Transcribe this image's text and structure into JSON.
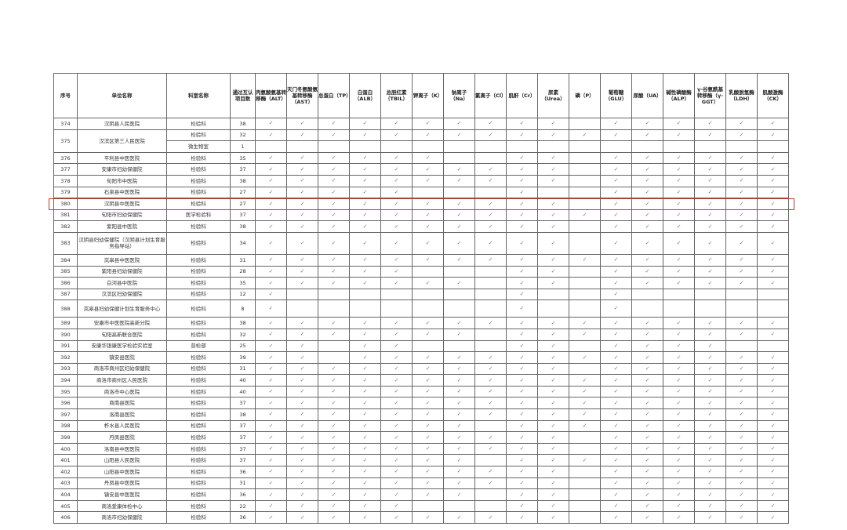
{
  "headers": [
    "序号",
    "单位名称",
    "科室名称",
    "通过互认项目数",
    "丙氨酸氨基转移酶（ALT）",
    "天门冬氨酸氨基转移酶（AST）",
    "总蛋白（TP）",
    "白蛋白（ALB）",
    "总胆红素（TBIL）",
    "钾离子（K）",
    "钠离子（Na）",
    "氯离子（Cl）",
    "肌酐（Cr）",
    "尿素（Urea）",
    "磷（P）",
    "葡萄糖（GLU）",
    "尿酸（UA）",
    "碱性磷酸酶（ALP）",
    "γ-谷氨酰基转移酶（γ-GGT）",
    "乳酸脱氢酶（LDH）",
    "肌酸激酶（CK）"
  ],
  "check_mark": "✓",
  "highlight_color": "#c0392b",
  "highlighted_row": "380",
  "rows": [
    {
      "no": "374",
      "unit": "汉阴县人民医院",
      "depts": [
        {
          "dept": "检验科",
          "count": "38",
          "flags": "11111111110111111"
        }
      ]
    },
    {
      "no": "375",
      "unit": "汉滨区第三人民医院",
      "depts": [
        {
          "dept": "检验科",
          "count": "32",
          "flags": "11111111111111111"
        },
        {
          "dept": "微生物室",
          "count": "1",
          "flags": "00000000000000000"
        }
      ]
    },
    {
      "no": "376",
      "unit": "平利县中医医院",
      "depts": [
        {
          "dept": "检验科",
          "count": "35",
          "flags": "11111100110111111"
        }
      ]
    },
    {
      "no": "377",
      "unit": "安康市妇幼保健院",
      "depts": [
        {
          "dept": "检验科",
          "count": "37",
          "flags": "11111111110111111"
        }
      ]
    },
    {
      "no": "378",
      "unit": "旬阳市中医院",
      "depts": [
        {
          "dept": "检验科",
          "count": "38",
          "flags": "11111111110111111"
        }
      ]
    },
    {
      "no": "379",
      "unit": "石泉县中医医院",
      "depts": [
        {
          "dept": "检验科",
          "count": "27",
          "flags": "11111000100111111"
        }
      ]
    },
    {
      "no": "380",
      "unit": "汉阴县中医医院",
      "depts": [
        {
          "dept": "检验科",
          "count": "27",
          "flags": "11111111110111111"
        }
      ]
    },
    {
      "no": "381",
      "unit": "旬阳市妇幼保健院",
      "depts": [
        {
          "dept": "医学检验科",
          "count": "37",
          "flags": "11111111111111111"
        }
      ]
    },
    {
      "no": "382",
      "unit": "紫阳县中医院",
      "depts": [
        {
          "dept": "检验科",
          "count": "38",
          "flags": "11111111110111111"
        }
      ]
    },
    {
      "no": "383",
      "unit": "汉阴县妇幼保健院（汉阴县计划生育服务指导站）",
      "depts": [
        {
          "dept": "检验科",
          "count": "34",
          "flags": "11111111110111111"
        }
      ]
    },
    {
      "no": "384",
      "unit": "岚皋县中医医院",
      "depts": [
        {
          "dept": "检验科",
          "count": "31",
          "flags": "11111111111111111"
        }
      ]
    },
    {
      "no": "385",
      "unit": "紫阳县妇幼保健院",
      "depts": [
        {
          "dept": "检验科",
          "count": "28",
          "flags": "11111000110111111"
        }
      ]
    },
    {
      "no": "386",
      "unit": "白河县中医院",
      "depts": [
        {
          "dept": "检验科",
          "count": "35",
          "flags": "11111110110111111"
        }
      ]
    },
    {
      "no": "387",
      "unit": "汉滨区妇幼保健院",
      "depts": [
        {
          "dept": "检验科",
          "count": "12",
          "flags": "10000000100100000"
        }
      ]
    },
    {
      "no": "388",
      "unit": "岚皋县妇幼保健计划生育服务中心",
      "depts": [
        {
          "dept": "检验科",
          "count": "8",
          "flags": "10000000100100000"
        }
      ]
    },
    {
      "no": "389",
      "unit": "安康市中医医院高新分院",
      "depts": [
        {
          "dept": "检验科",
          "count": "38",
          "flags": "11111111111111111"
        }
      ]
    },
    {
      "no": "390",
      "unit": "旬阳高新联合医院",
      "depts": [
        {
          "dept": "检验科",
          "count": "32",
          "flags": "11111110111111111"
        }
      ]
    },
    {
      "no": "391",
      "unit": "安康华银康医学检验实验室",
      "depts": [
        {
          "dept": "普检部",
          "count": "25",
          "flags": "11011000110111100"
        }
      ]
    },
    {
      "no": "392",
      "unit": "镇安县医院",
      "depts": [
        {
          "dept": "检验科",
          "count": "39",
          "flags": "11011111111111111"
        }
      ]
    },
    {
      "no": "393",
      "unit": "商洛市商州区妇幼保健院",
      "depts": [
        {
          "dept": "检验科",
          "count": "31",
          "flags": "11111111110111111"
        }
      ]
    },
    {
      "no": "394",
      "unit": "商洛市商州区人民医院",
      "depts": [
        {
          "dept": "检验科",
          "count": "40",
          "flags": "11111111111111111"
        }
      ]
    },
    {
      "no": "395",
      "unit": "商洛市中心医院",
      "depts": [
        {
          "dept": "检验科",
          "count": "40",
          "flags": "11111111111111111"
        }
      ]
    },
    {
      "no": "396",
      "unit": "商南县医院",
      "depts": [
        {
          "dept": "检验科",
          "count": "37",
          "flags": "11111111111111111"
        }
      ]
    },
    {
      "no": "397",
      "unit": "洛南县医院",
      "depts": [
        {
          "dept": "检验科",
          "count": "38",
          "flags": "11111111111111111"
        }
      ]
    },
    {
      "no": "398",
      "unit": "柞水县人民医院",
      "depts": [
        {
          "dept": "检验科",
          "count": "37",
          "flags": "11111110111111111"
        }
      ]
    },
    {
      "no": "399",
      "unit": "丹凤县医院",
      "depts": [
        {
          "dept": "检验科",
          "count": "37",
          "flags": "11111111110111111"
        }
      ]
    },
    {
      "no": "400",
      "unit": "洛南县中医医院",
      "depts": [
        {
          "dept": "检验科",
          "count": "37",
          "flags": "11111111110111111"
        }
      ]
    },
    {
      "no": "401",
      "unit": "山阳县人民医院",
      "depts": [
        {
          "dept": "检验科",
          "count": "37",
          "flags": "11111110111111111"
        }
      ]
    },
    {
      "no": "402",
      "unit": "山阳县中医医院",
      "depts": [
        {
          "dept": "检验科",
          "count": "36",
          "flags": "11111111110111111"
        }
      ]
    },
    {
      "no": "403",
      "unit": "丹凤县中医医院",
      "depts": [
        {
          "dept": "检验科",
          "count": "31",
          "flags": "11111111110111111"
        }
      ]
    },
    {
      "no": "404",
      "unit": "镇安县中医医院",
      "depts": [
        {
          "dept": "检验科",
          "count": "36",
          "flags": "11111110110111111"
        }
      ]
    },
    {
      "no": "405",
      "unit": "商洛爱康体检中心",
      "depts": [
        {
          "dept": "检验科",
          "count": "22",
          "flags": "11111000110111111"
        }
      ]
    },
    {
      "no": "406",
      "unit": "商洛市妇幼保健院",
      "depts": [
        {
          "dept": "检验科",
          "count": "36",
          "flags": "11111111110111111"
        }
      ]
    }
  ]
}
